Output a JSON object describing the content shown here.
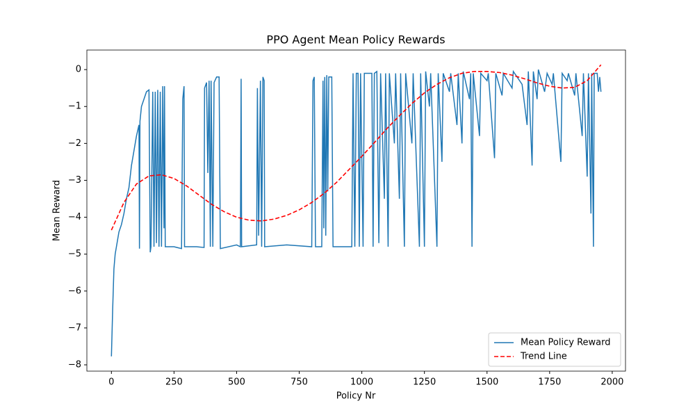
{
  "chart_data": {
    "type": "line",
    "title": "PPO Agent Mean Policy Rewards",
    "x_label": "Policy Nr",
    "y_label": "Mean Reward",
    "xlim": [
      -98,
      2053
    ],
    "ylim": [
      -8.17,
      0.53
    ],
    "xticks": [
      0,
      250,
      500,
      750,
      1000,
      1250,
      1500,
      1750,
      2000
    ],
    "yticks": [
      {
        "value": -8,
        "label": "−8"
      },
      {
        "value": -7,
        "label": "−7"
      },
      {
        "value": -6,
        "label": "−6"
      },
      {
        "value": -5,
        "label": "−5"
      },
      {
        "value": -4,
        "label": "−4"
      },
      {
        "value": -3,
        "label": "−3"
      },
      {
        "value": -2,
        "label": "−2"
      },
      {
        "value": -1,
        "label": "−1"
      },
      0
    ],
    "legend": "lower right",
    "series": [
      {
        "name": "Mean Policy Reward",
        "color": "#1f77b4",
        "dash": "solid",
        "x": [
          0,
          5,
          10,
          15,
          20,
          30,
          40,
          50,
          60,
          70,
          80,
          90,
          100,
          110,
          112,
          114,
          120,
          130,
          140,
          150,
          155,
          158,
          165,
          170,
          175,
          180,
          185,
          190,
          195,
          200,
          205,
          210,
          212,
          215,
          250,
          280,
          285,
          290,
          292,
          340,
          370,
          372,
          380,
          385,
          390,
          395,
          398,
          405,
          410,
          420,
          430,
          435,
          500,
          515,
          518,
          520,
          580,
          583,
          588,
          595,
          600,
          605,
          610,
          612,
          700,
          800,
          805,
          810,
          815,
          840,
          845,
          848,
          852,
          856,
          860,
          864,
          868,
          875,
          880,
          885,
          960,
          965,
          972,
          978,
          985,
          990,
          995,
          1005,
          1010,
          1040,
          1045,
          1050,
          1060,
          1068,
          1075,
          1090,
          1095,
          1105,
          1110,
          1130,
          1135,
          1150,
          1155,
          1170,
          1175,
          1200,
          1205,
          1230,
          1235,
          1250,
          1255,
          1270,
          1275,
          1300,
          1305,
          1320,
          1325,
          1350,
          1355,
          1380,
          1385,
          1400,
          1405,
          1430,
          1435,
          1440,
          1445,
          1470,
          1475,
          1500,
          1505,
          1530,
          1535,
          1560,
          1565,
          1600,
          1605,
          1640,
          1660,
          1665,
          1680,
          1685,
          1700,
          1705,
          1730,
          1740,
          1760,
          1765,
          1795,
          1800,
          1820,
          1825,
          1850,
          1855,
          1880,
          1885,
          1900,
          1905,
          1915,
          1918,
          1925,
          1928,
          1940,
          1945,
          1950,
          1955
        ],
        "values": [
          -7.77,
          -6.5,
          -5.4,
          -5.0,
          -4.8,
          -4.4,
          -4.2,
          -3.9,
          -3.5,
          -3.2,
          -2.6,
          -2.2,
          -1.8,
          -1.5,
          -4.85,
          -1.4,
          -1.0,
          -0.8,
          -0.6,
          -0.55,
          -4.95,
          -4.8,
          -0.6,
          -4.8,
          -0.6,
          -4.7,
          -0.55,
          -4.8,
          -0.6,
          -4.8,
          -0.45,
          -4.3,
          -0.45,
          -4.8,
          -4.8,
          -4.85,
          -0.8,
          -0.45,
          -4.8,
          -4.8,
          -4.82,
          -0.5,
          -0.35,
          -2.8,
          -0.3,
          -4.8,
          -0.3,
          -4.8,
          -0.35,
          -0.2,
          -0.2,
          -4.85,
          -4.75,
          -4.8,
          -0.25,
          -4.8,
          -4.75,
          -0.5,
          -4.5,
          -0.3,
          -4.8,
          -0.2,
          -0.3,
          -4.8,
          -4.75,
          -4.8,
          -0.3,
          -0.2,
          -4.8,
          -4.8,
          -0.3,
          -4.3,
          -0.2,
          -4.5,
          -0.15,
          -3.3,
          -0.2,
          -0.2,
          -0.2,
          -4.8,
          -4.8,
          -0.1,
          -4.8,
          -0.1,
          -0.1,
          -4.8,
          -0.1,
          -4.8,
          -0.1,
          -0.1,
          -4.8,
          -0.1,
          -0.05,
          -4.7,
          -0.1,
          -3.5,
          -0.1,
          -4.8,
          -0.1,
          -2.0,
          -0.1,
          -3.5,
          -0.1,
          -4.8,
          -0.1,
          -2.0,
          -0.1,
          -4.8,
          -0.1,
          -4.8,
          -0.05,
          -1.0,
          -0.1,
          -4.8,
          -0.1,
          -2.5,
          -0.1,
          -0.6,
          -0.1,
          -1.5,
          -0.1,
          -2.0,
          -0.05,
          -0.8,
          -0.1,
          -4.8,
          -0.1,
          -1.8,
          -0.1,
          -0.3,
          -0.1,
          -2.4,
          -0.1,
          -0.7,
          -0.1,
          -0.5,
          -0.05,
          -0.4,
          -1.5,
          -0.05,
          -2.6,
          -0.05,
          -0.8,
          0.0,
          -0.6,
          -0.1,
          -0.4,
          -0.1,
          -2.5,
          -0.1,
          -0.3,
          -0.1,
          -0.7,
          -0.1,
          -1.8,
          -0.1,
          -2.9,
          -0.1,
          -3.9,
          -0.1,
          -4.8,
          -0.1,
          -0.1,
          -0.6,
          -0.2,
          -0.6
        ]
      },
      {
        "name": "Trend Line",
        "color": "#ff0000",
        "dash": "dashed",
        "x": [
          0,
          50,
          100,
          150,
          200,
          250,
          300,
          350,
          400,
          450,
          500,
          550,
          600,
          650,
          700,
          750,
          800,
          850,
          900,
          950,
          1000,
          1050,
          1100,
          1150,
          1200,
          1250,
          1300,
          1350,
          1400,
          1450,
          1500,
          1550,
          1600,
          1650,
          1700,
          1750,
          1800,
          1850,
          1900,
          1955
        ],
        "values": [
          -4.35,
          -3.6,
          -3.1,
          -2.88,
          -2.85,
          -2.95,
          -3.15,
          -3.4,
          -3.65,
          -3.85,
          -4.0,
          -4.08,
          -4.1,
          -4.05,
          -3.95,
          -3.8,
          -3.6,
          -3.35,
          -3.05,
          -2.7,
          -2.35,
          -1.98,
          -1.6,
          -1.25,
          -0.92,
          -0.63,
          -0.4,
          -0.22,
          -0.1,
          -0.05,
          -0.05,
          -0.08,
          -0.15,
          -0.25,
          -0.36,
          -0.45,
          -0.5,
          -0.48,
          -0.3,
          0.13
        ]
      }
    ]
  }
}
